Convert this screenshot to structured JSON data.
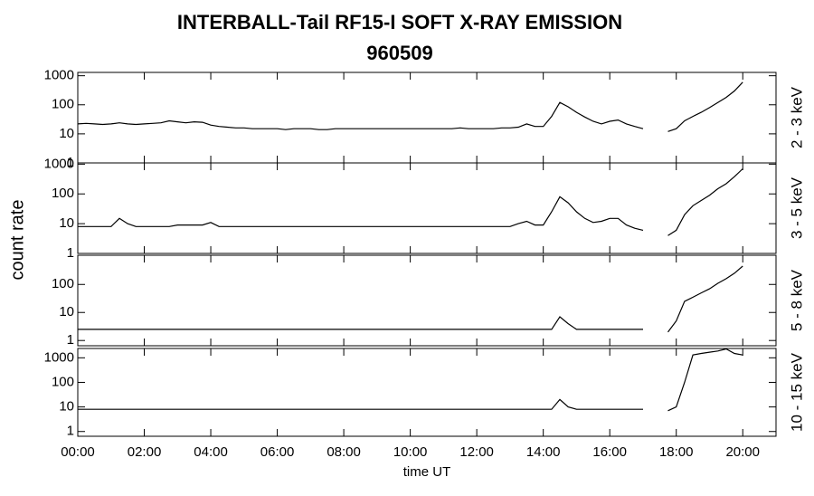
{
  "chart_data": {
    "type": "line",
    "title": "INTERBALL-Tail RF15-I SOFT X-RAY EMISSION",
    "subtitle": "960509",
    "x_label": "time UT",
    "y_label": "count rate",
    "log_y": true,
    "color": "#000000",
    "xlim": [
      0,
      21
    ],
    "xticks": [
      {
        "value": 0,
        "label": "00:00"
      },
      {
        "value": 2,
        "label": "02:00"
      },
      {
        "value": 4,
        "label": "04:00"
      },
      {
        "value": 6,
        "label": "06:00"
      },
      {
        "value": 8,
        "label": "08:00"
      },
      {
        "value": 10,
        "label": "10:00"
      },
      {
        "value": 12,
        "label": "12:00"
      },
      {
        "value": 14,
        "label": "14:00"
      },
      {
        "value": 16,
        "label": "16:00"
      },
      {
        "value": 18,
        "label": "18:00"
      },
      {
        "value": 20,
        "label": "20:00"
      }
    ],
    "x": [
      0,
      0.25,
      0.5,
      0.75,
      1,
      1.25,
      1.5,
      1.75,
      2,
      2.25,
      2.5,
      2.75,
      3,
      3.25,
      3.5,
      3.75,
      4,
      4.25,
      4.5,
      4.75,
      5,
      5.25,
      5.5,
      5.75,
      6,
      6.25,
      6.5,
      6.75,
      7,
      7.25,
      7.5,
      7.75,
      8,
      8.25,
      8.5,
      8.75,
      9,
      9.25,
      9.5,
      9.75,
      10,
      10.25,
      10.5,
      10.75,
      11,
      11.25,
      11.5,
      11.75,
      12,
      12.25,
      12.5,
      12.75,
      13,
      13.25,
      13.5,
      13.75,
      14,
      14.25,
      14.5,
      14.75,
      15,
      15.25,
      15.5,
      15.75,
      16,
      16.25,
      16.5,
      16.75,
      17,
      17.25,
      17.5,
      17.75,
      18,
      18.25,
      18.5,
      18.75,
      19,
      19.25,
      19.5,
      19.75,
      20
    ],
    "panels": [
      {
        "name": "2 - 3 keV",
        "ylim": [
          1,
          1300
        ],
        "yticks": [
          1,
          10,
          100,
          1000
        ],
        "values": [
          22,
          23,
          22,
          21,
          22,
          24,
          22,
          21,
          22,
          23,
          24,
          28,
          26,
          24,
          26,
          25,
          20,
          18,
          17,
          16,
          16,
          15,
          15,
          15,
          15,
          14,
          15,
          15,
          15,
          14,
          14,
          15,
          15,
          15,
          15,
          15,
          15,
          15,
          15,
          15,
          15,
          15,
          15,
          15,
          15,
          15,
          16,
          15,
          15,
          15,
          15,
          16,
          16,
          17,
          22,
          18,
          18,
          40,
          120,
          85,
          55,
          38,
          27,
          22,
          27,
          30,
          22,
          18,
          15,
          null,
          null,
          12,
          15,
          28,
          40,
          55,
          80,
          120,
          180,
          300,
          600
        ]
      },
      {
        "name": "3 - 5 keV",
        "ylim": [
          1,
          1100
        ],
        "yticks": [
          1,
          10,
          100,
          1000
        ],
        "values": [
          8,
          8,
          8,
          8,
          8,
          15,
          10,
          8,
          8,
          8,
          8,
          8,
          9,
          9,
          9,
          9,
          11,
          8,
          8,
          8,
          8,
          8,
          8,
          8,
          8,
          8,
          8,
          8,
          8,
          8,
          8,
          8,
          8,
          8,
          8,
          8,
          8,
          8,
          8,
          8,
          8,
          8,
          8,
          8,
          8,
          8,
          8,
          8,
          8,
          8,
          8,
          8,
          8,
          10,
          12,
          9,
          9,
          25,
          80,
          50,
          25,
          15,
          11,
          12,
          15,
          15,
          9,
          7,
          6,
          null,
          null,
          4,
          6,
          20,
          40,
          60,
          90,
          150,
          220,
          380,
          700
        ]
      },
      {
        "name": "5 - 8 keV",
        "ylim": [
          0.65,
          1100
        ],
        "yticks": [
          1,
          10,
          100
        ],
        "values": [
          2.5,
          2.5,
          2.5,
          2.5,
          2.5,
          2.5,
          2.5,
          2.5,
          2.5,
          2.5,
          2.5,
          2.5,
          2.5,
          2.5,
          2.5,
          2.5,
          2.5,
          2.5,
          2.5,
          2.5,
          2.5,
          2.5,
          2.5,
          2.5,
          2.5,
          2.5,
          2.5,
          2.5,
          2.5,
          2.5,
          2.5,
          2.5,
          2.5,
          2.5,
          2.5,
          2.5,
          2.5,
          2.5,
          2.5,
          2.5,
          2.5,
          2.5,
          2.5,
          2.5,
          2.5,
          2.5,
          2.5,
          2.5,
          2.5,
          2.5,
          2.5,
          2.5,
          2.5,
          2.5,
          2.5,
          2.5,
          2.5,
          2.5,
          7,
          4,
          2.5,
          2.5,
          2.5,
          2.5,
          2.5,
          2.5,
          2.5,
          2.5,
          2.5,
          null,
          null,
          2,
          5,
          25,
          35,
          50,
          70,
          110,
          160,
          250,
          450
        ]
      },
      {
        "name": "10 - 15 keV",
        "ylim": [
          0.64,
          2400
        ],
        "yticks": [
          1,
          10,
          100,
          1000
        ],
        "values": [
          8,
          8,
          8,
          8,
          8,
          8,
          8,
          8,
          8,
          8,
          8,
          8,
          8,
          8,
          8,
          8,
          8,
          8,
          8,
          8,
          8,
          8,
          8,
          8,
          8,
          8,
          8,
          8,
          8,
          8,
          8,
          8,
          8,
          8,
          8,
          8,
          8,
          8,
          8,
          8,
          8,
          8,
          8,
          8,
          8,
          8,
          8,
          8,
          8,
          8,
          8,
          8,
          8,
          8,
          8,
          8,
          8,
          8,
          20,
          10,
          8,
          8,
          8,
          8,
          8,
          8,
          8,
          8,
          8,
          null,
          null,
          7,
          10,
          100,
          1300,
          1500,
          1700,
          1900,
          2300,
          1500,
          1300
        ]
      }
    ]
  }
}
